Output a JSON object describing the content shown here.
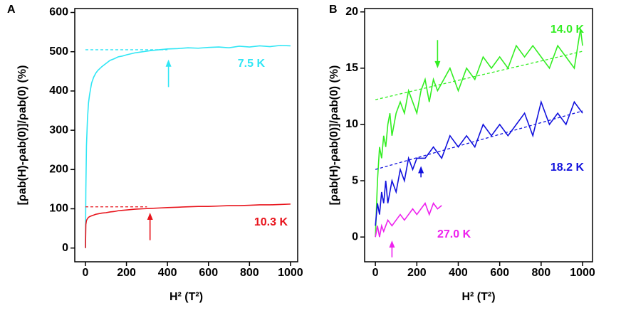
{
  "chart_data": [
    {
      "type": "line",
      "title": "A",
      "x_label": "H² (T²)",
      "y_label": "[ρab(H)-ρab(0)]/ρab(0) (%)",
      "xlim": [
        -52,
        1035
      ],
      "ylim": [
        -35,
        610
      ],
      "xticks": [
        0,
        200,
        400,
        600,
        800,
        1000
      ],
      "yticks": [
        0,
        100,
        200,
        300,
        400,
        500,
        600
      ],
      "series": [
        {
          "name": "7.5 K",
          "color": "#2fe6f5",
          "x": [
            0,
            2,
            5,
            10,
            15,
            20,
            30,
            40,
            50,
            60,
            80,
            100,
            120,
            140,
            160,
            180,
            200,
            240,
            280,
            320,
            360,
            400,
            450,
            500,
            550,
            600,
            650,
            700,
            750,
            800,
            850,
            900,
            950,
            1000
          ],
          "values": [
            0,
            150,
            260,
            330,
            370,
            390,
            420,
            435,
            445,
            452,
            462,
            470,
            478,
            482,
            487,
            489,
            492,
            497,
            500,
            503,
            505,
            507,
            508,
            510,
            509,
            511,
            512,
            510,
            514,
            512,
            515,
            513,
            516,
            515
          ]
        },
        {
          "name": "10.3 K",
          "color": "#e8141c",
          "x": [
            0,
            2,
            5,
            10,
            15,
            20,
            30,
            40,
            50,
            60,
            80,
            100,
            120,
            140,
            160,
            180,
            200,
            240,
            280,
            320,
            360,
            400,
            450,
            500,
            550,
            600,
            650,
            700,
            750,
            800,
            850,
            900,
            950,
            1000
          ],
          "values": [
            0,
            60,
            70,
            75,
            78,
            80,
            82,
            84,
            86,
            87,
            89,
            90,
            92,
            93,
            95,
            96,
            97,
            99,
            100,
            101,
            102,
            103,
            104,
            105,
            106,
            106,
            107,
            108,
            108,
            109,
            110,
            110,
            111,
            112
          ]
        }
      ],
      "fits": [
        {
          "color": "#2fe6f5",
          "x": [
            0,
            400
          ],
          "values": [
            505,
            505
          ]
        },
        {
          "color": "#e8141c",
          "x": [
            0,
            300
          ],
          "values": [
            105,
            105
          ]
        }
      ],
      "arrows": [
        {
          "color": "#2fe6f5",
          "x": 405,
          "y": [
            410,
            480
          ]
        },
        {
          "color": "#e8141c",
          "x": 315,
          "y": [
            20,
            90
          ]
        }
      ]
    },
    {
      "type": "line",
      "title": "B",
      "x_label": "H² (T²)",
      "y_label": "[ρab(H)-ρab(0)]/ρab(0) (%)",
      "xlim": [
        -52,
        1048
      ],
      "ylim": [
        -2.2,
        20.3
      ],
      "xticks": [
        0,
        200,
        400,
        600,
        800,
        1000
      ],
      "yticks": [
        0,
        5,
        10,
        15,
        20
      ],
      "series": [
        {
          "name": "14.0 K",
          "color": "#33ee22",
          "x": [
            0,
            10,
            20,
            30,
            40,
            50,
            60,
            70,
            80,
            100,
            120,
            140,
            160,
            180,
            200,
            220,
            240,
            260,
            280,
            300,
            330,
            360,
            400,
            440,
            480,
            520,
            560,
            600,
            640,
            680,
            720,
            760,
            800,
            840,
            880,
            920,
            960,
            990,
            1000
          ],
          "values": [
            0,
            5,
            8,
            7,
            9,
            8,
            10,
            11,
            9,
            11,
            12,
            11,
            13,
            12,
            11,
            13,
            14,
            12,
            14,
            13,
            14,
            15,
            13,
            15,
            14,
            16,
            15,
            16,
            15,
            17,
            16,
            17,
            16,
            15,
            17,
            16,
            15,
            18.5,
            17
          ]
        },
        {
          "name": "18.2 K",
          "color": "#1111dd",
          "x": [
            0,
            10,
            20,
            30,
            40,
            50,
            60,
            80,
            100,
            120,
            140,
            160,
            180,
            200,
            240,
            280,
            320,
            360,
            400,
            440,
            480,
            520,
            560,
            600,
            640,
            680,
            720,
            760,
            800,
            840,
            880,
            920,
            960,
            1000
          ],
          "values": [
            1,
            3,
            2,
            4,
            3,
            5,
            3,
            5,
            4,
            6,
            5,
            7,
            6,
            7,
            7,
            8,
            7,
            9,
            8,
            9,
            8,
            10,
            9,
            10,
            9,
            10,
            11,
            9,
            12,
            10,
            11,
            10,
            12,
            11
          ]
        },
        {
          "name": "27.0 K",
          "color": "#ee22ee",
          "x": [
            0,
            10,
            20,
            30,
            40,
            60,
            80,
            100,
            120,
            140,
            160,
            180,
            200,
            220,
            240,
            260,
            280,
            300,
            320
          ],
          "values": [
            0,
            1,
            0,
            1,
            0.5,
            1.5,
            1,
            1.5,
            2,
            1.5,
            2,
            2.5,
            2,
            2.5,
            3,
            2,
            3,
            2.5,
            2.8
          ]
        }
      ],
      "fits": [
        {
          "color": "#33ee22",
          "x": [
            0,
            1000
          ],
          "values": [
            12.2,
            16.5
          ]
        },
        {
          "color": "#1111dd",
          "x": [
            0,
            1000
          ],
          "values": [
            6,
            11.2
          ]
        }
      ],
      "arrows": [
        {
          "color": "#33ee22",
          "x": 300,
          "y": [
            17.5,
            15
          ]
        },
        {
          "color": "#1111dd",
          "x": 220,
          "y": [
            5.3,
            6.3
          ]
        },
        {
          "color": "#ee22ee",
          "x": 80,
          "y": [
            -1.8,
            -0.3
          ]
        }
      ]
    }
  ]
}
